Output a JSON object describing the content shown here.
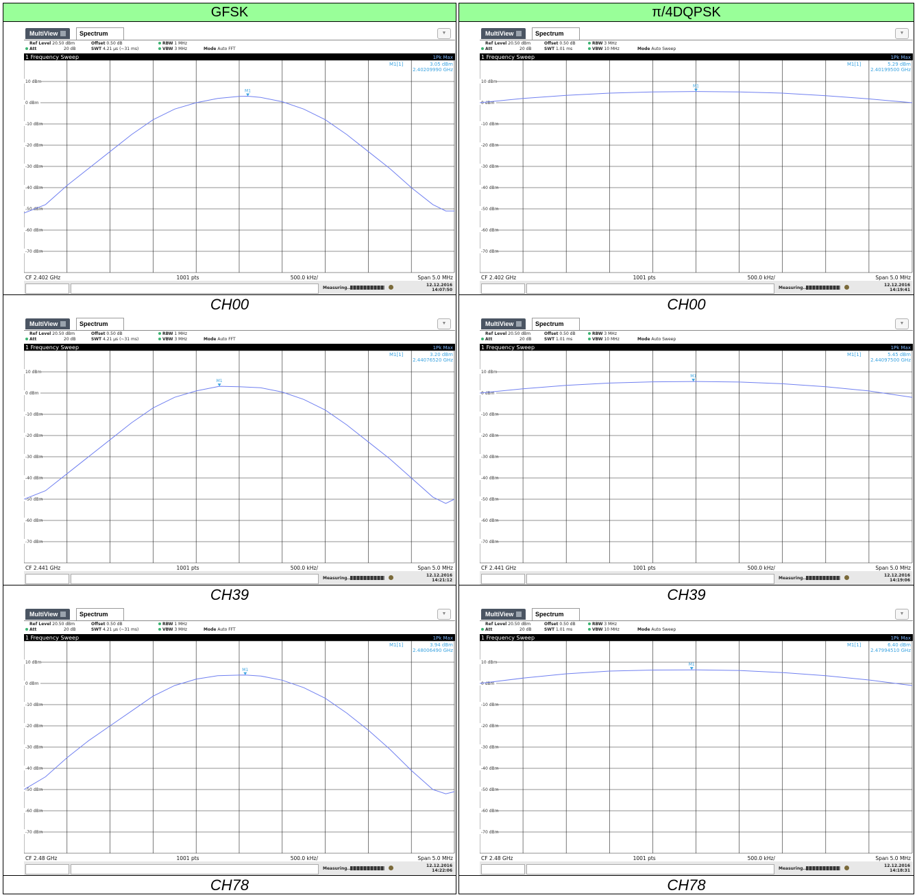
{
  "headers": {
    "left": "GFSK",
    "right": "π/4DQPSK"
  },
  "analyzer": {
    "multiview_label": "MultiView",
    "spectrum_label": "Spectrum",
    "ref_level_label": "Ref Level",
    "ref_level_value": "20.50 dBm",
    "att_label": "Att",
    "att_value": "20 dB",
    "offset_label": "Offset",
    "offset_value": "0.50 dB",
    "swt_label": "SWT",
    "rbw_label": "RBW",
    "vbw_label": "VBW",
    "mode_label": "Mode",
    "sweep_title": "1 Frequency Sweep",
    "trace_label": "1Pk Max",
    "marker_name": "M1[1]",
    "marker_tag": "M1",
    "points_label": "1001 pts",
    "div_label": "500.0 kHz/",
    "span_label": "Span 5.0 MHz",
    "measuring_label": "Measuring...",
    "date": "12.12.2016",
    "colors": {
      "trace": "#6f7ff0",
      "marker": "#3aa3e0",
      "grid": "#222222",
      "plot_bg": "#ffffff",
      "title_bar": "#000000"
    }
  },
  "panels": [
    {
      "id": "gfsk-ch00",
      "caption": "CH00",
      "swt": "4.21 µs (~31 ms)",
      "rbw": "1 MHz",
      "vbw": "3 MHz",
      "mode": "Auto FFT",
      "marker_level": "3.05 dBm",
      "marker_freq": "2.40209990 GHz",
      "cf": "CF 2.402 GHz",
      "time": "14:07:50",
      "chart_data": {
        "type": "line",
        "ylim": [
          -80,
          20
        ],
        "xlim": [
          -2.5,
          2.5
        ],
        "xunit": "MHz",
        "yticks": [
          "10 dBm",
          "0 dBm",
          "-10 dBm",
          "-20 dBm",
          "-30 dBm",
          "-40 dBm",
          "-50 dBm",
          "-60 dBm",
          "-70 dBm"
        ],
        "x": [
          -2.5,
          -2.25,
          -2.0,
          -1.75,
          -1.5,
          -1.25,
          -1.0,
          -0.75,
          -0.5,
          -0.25,
          0.0,
          0.1,
          0.25,
          0.5,
          0.75,
          1.0,
          1.25,
          1.5,
          1.75,
          2.0,
          2.25,
          2.4,
          2.5
        ],
        "y": [
          -52,
          -48,
          -39,
          -31,
          -23,
          -15,
          -8,
          -3,
          0,
          2,
          3,
          3.05,
          2.5,
          0.5,
          -3,
          -8,
          -15,
          -23,
          -31,
          -40,
          -48,
          -51,
          -51
        ],
        "marker": {
          "x": 0.1,
          "y": 3.05
        }
      }
    },
    {
      "id": "dqpsk-ch00",
      "caption": "CH00",
      "swt": "1.01 ms",
      "rbw": "3 MHz",
      "vbw": "10 MHz",
      "mode": "Auto Sweep",
      "marker_level": "5.29 dBm",
      "marker_freq": "2.40199500 GHz",
      "cf": "CF 2.402 GHz",
      "time": "14:19:41",
      "chart_data": {
        "type": "line",
        "ylim": [
          -80,
          20
        ],
        "xlim": [
          -2.5,
          2.5
        ],
        "xunit": "MHz",
        "yticks": [
          "10 dBm",
          "0 dBm",
          "-10 dBm",
          "-20 dBm",
          "-30 dBm",
          "-40 dBm",
          "-50 dBm",
          "-60 dBm",
          "-70 dBm"
        ],
        "x": [
          -2.5,
          -2.0,
          -1.5,
          -1.0,
          -0.5,
          0.0,
          0.5,
          1.0,
          1.5,
          2.0,
          2.5
        ],
        "y": [
          0,
          2,
          3.5,
          4.5,
          5.1,
          5.3,
          5.1,
          4.5,
          3.3,
          1.8,
          0
        ],
        "marker": {
          "x": 0.0,
          "y": 5.29
        }
      }
    },
    {
      "id": "gfsk-ch39",
      "caption": "CH39",
      "swt": "4.21 µs (~31 ms)",
      "rbw": "1 MHz",
      "vbw": "3 MHz",
      "mode": "Auto FFT",
      "marker_level": "3.20 dBm",
      "marker_freq": "2.44076520 GHz",
      "cf": "CF 2.441 GHz",
      "time": "14:21:12",
      "chart_data": {
        "type": "line",
        "ylim": [
          -80,
          20
        ],
        "xlim": [
          -2.5,
          2.5
        ],
        "xunit": "MHz",
        "yticks": [
          "10 dBm",
          "0 dBm",
          "-10 dBm",
          "-20 dBm",
          "-30 dBm",
          "-40 dBm",
          "-50 dBm",
          "-60 dBm",
          "-70 dBm"
        ],
        "x": [
          -2.5,
          -2.25,
          -2.0,
          -1.75,
          -1.5,
          -1.25,
          -1.0,
          -0.75,
          -0.5,
          -0.23,
          0.0,
          0.25,
          0.5,
          0.75,
          1.0,
          1.25,
          1.5,
          1.75,
          2.0,
          2.25,
          2.4,
          2.5
        ],
        "y": [
          -50,
          -46,
          -38,
          -30,
          -22,
          -14,
          -7,
          -2,
          1,
          3.2,
          3,
          2.5,
          0.5,
          -3,
          -8,
          -15,
          -23,
          -31,
          -40,
          -49,
          -52,
          -50
        ],
        "marker": {
          "x": -0.23,
          "y": 3.2
        }
      }
    },
    {
      "id": "dqpsk-ch39",
      "caption": "CH39",
      "swt": "1.01 ms",
      "rbw": "3 MHz",
      "vbw": "10 MHz",
      "mode": "Auto Sweep",
      "marker_level": "5.45 dBm",
      "marker_freq": "2.44097500 GHz",
      "cf": "CF 2.441 GHz",
      "time": "14:19:06",
      "chart_data": {
        "type": "line",
        "ylim": [
          -80,
          20
        ],
        "xlim": [
          -2.5,
          2.5
        ],
        "xunit": "MHz",
        "yticks": [
          "10 dBm",
          "0 dBm",
          "-10 dBm",
          "-20 dBm",
          "-30 dBm",
          "-40 dBm",
          "-50 dBm",
          "-60 dBm",
          "-70 dBm"
        ],
        "x": [
          -2.5,
          -2.0,
          -1.5,
          -1.0,
          -0.5,
          0.0,
          0.5,
          1.0,
          1.5,
          2.0,
          2.5
        ],
        "y": [
          0,
          2,
          3.6,
          4.7,
          5.3,
          5.45,
          5.2,
          4.4,
          3.0,
          1.0,
          -2
        ],
        "marker": {
          "x": -0.03,
          "y": 5.45
        }
      }
    },
    {
      "id": "gfsk-ch78",
      "caption": "CH78",
      "swt": "4.21 µs (~31 ms)",
      "rbw": "1 MHz",
      "vbw": "3 MHz",
      "mode": "Auto FFT",
      "marker_level": "3.94 dBm",
      "marker_freq": "2.48006490 GHz",
      "cf": "CF 2.48 GHz",
      "time": "14:22:06",
      "chart_data": {
        "type": "line",
        "ylim": [
          -80,
          20
        ],
        "xlim": [
          -2.5,
          2.5
        ],
        "xunit": "MHz",
        "yticks": [
          "10 dBm",
          "0 dBm",
          "-10 dBm",
          "-20 dBm",
          "-30 dBm",
          "-40 dBm",
          "-50 dBm",
          "-60 dBm",
          "-70 dBm"
        ],
        "x": [
          -2.5,
          -2.25,
          -2.0,
          -1.75,
          -1.5,
          -1.25,
          -1.0,
          -0.75,
          -0.5,
          -0.25,
          0.0,
          0.07,
          0.25,
          0.5,
          0.75,
          1.0,
          1.25,
          1.5,
          1.75,
          2.0,
          2.25,
          2.4,
          2.5
        ],
        "y": [
          -50,
          -44,
          -35,
          -27,
          -20,
          -13,
          -6,
          -1,
          2,
          3.6,
          3.9,
          3.94,
          3.5,
          1.5,
          -2,
          -7,
          -14,
          -22,
          -31,
          -41,
          -50,
          -52,
          -51
        ],
        "marker": {
          "x": 0.07,
          "y": 3.94
        }
      }
    },
    {
      "id": "dqpsk-ch78",
      "caption": "CH78",
      "swt": "1.01 ms",
      "rbw": "3 MHz",
      "vbw": "10 MHz",
      "mode": "Auto Sweep",
      "marker_level": "6.40 dBm",
      "marker_freq": "2.47994510 GHz",
      "cf": "CF 2.48 GHz",
      "time": "14:18:31",
      "chart_data": {
        "type": "line",
        "ylim": [
          -80,
          20
        ],
        "xlim": [
          -2.5,
          2.5
        ],
        "xunit": "MHz",
        "yticks": [
          "10 dBm",
          "0 dBm",
          "-10 dBm",
          "-20 dBm",
          "-30 dBm",
          "-40 dBm",
          "-50 dBm",
          "-60 dBm",
          "-70 dBm"
        ],
        "x": [
          -2.5,
          -2.0,
          -1.5,
          -1.0,
          -0.5,
          0.0,
          0.5,
          1.0,
          1.5,
          2.0,
          2.5
        ],
        "y": [
          0,
          2.5,
          4.5,
          5.8,
          6.3,
          6.4,
          6.1,
          5.1,
          3.6,
          1.6,
          -1
        ],
        "marker": {
          "x": -0.05,
          "y": 6.4
        }
      }
    }
  ]
}
